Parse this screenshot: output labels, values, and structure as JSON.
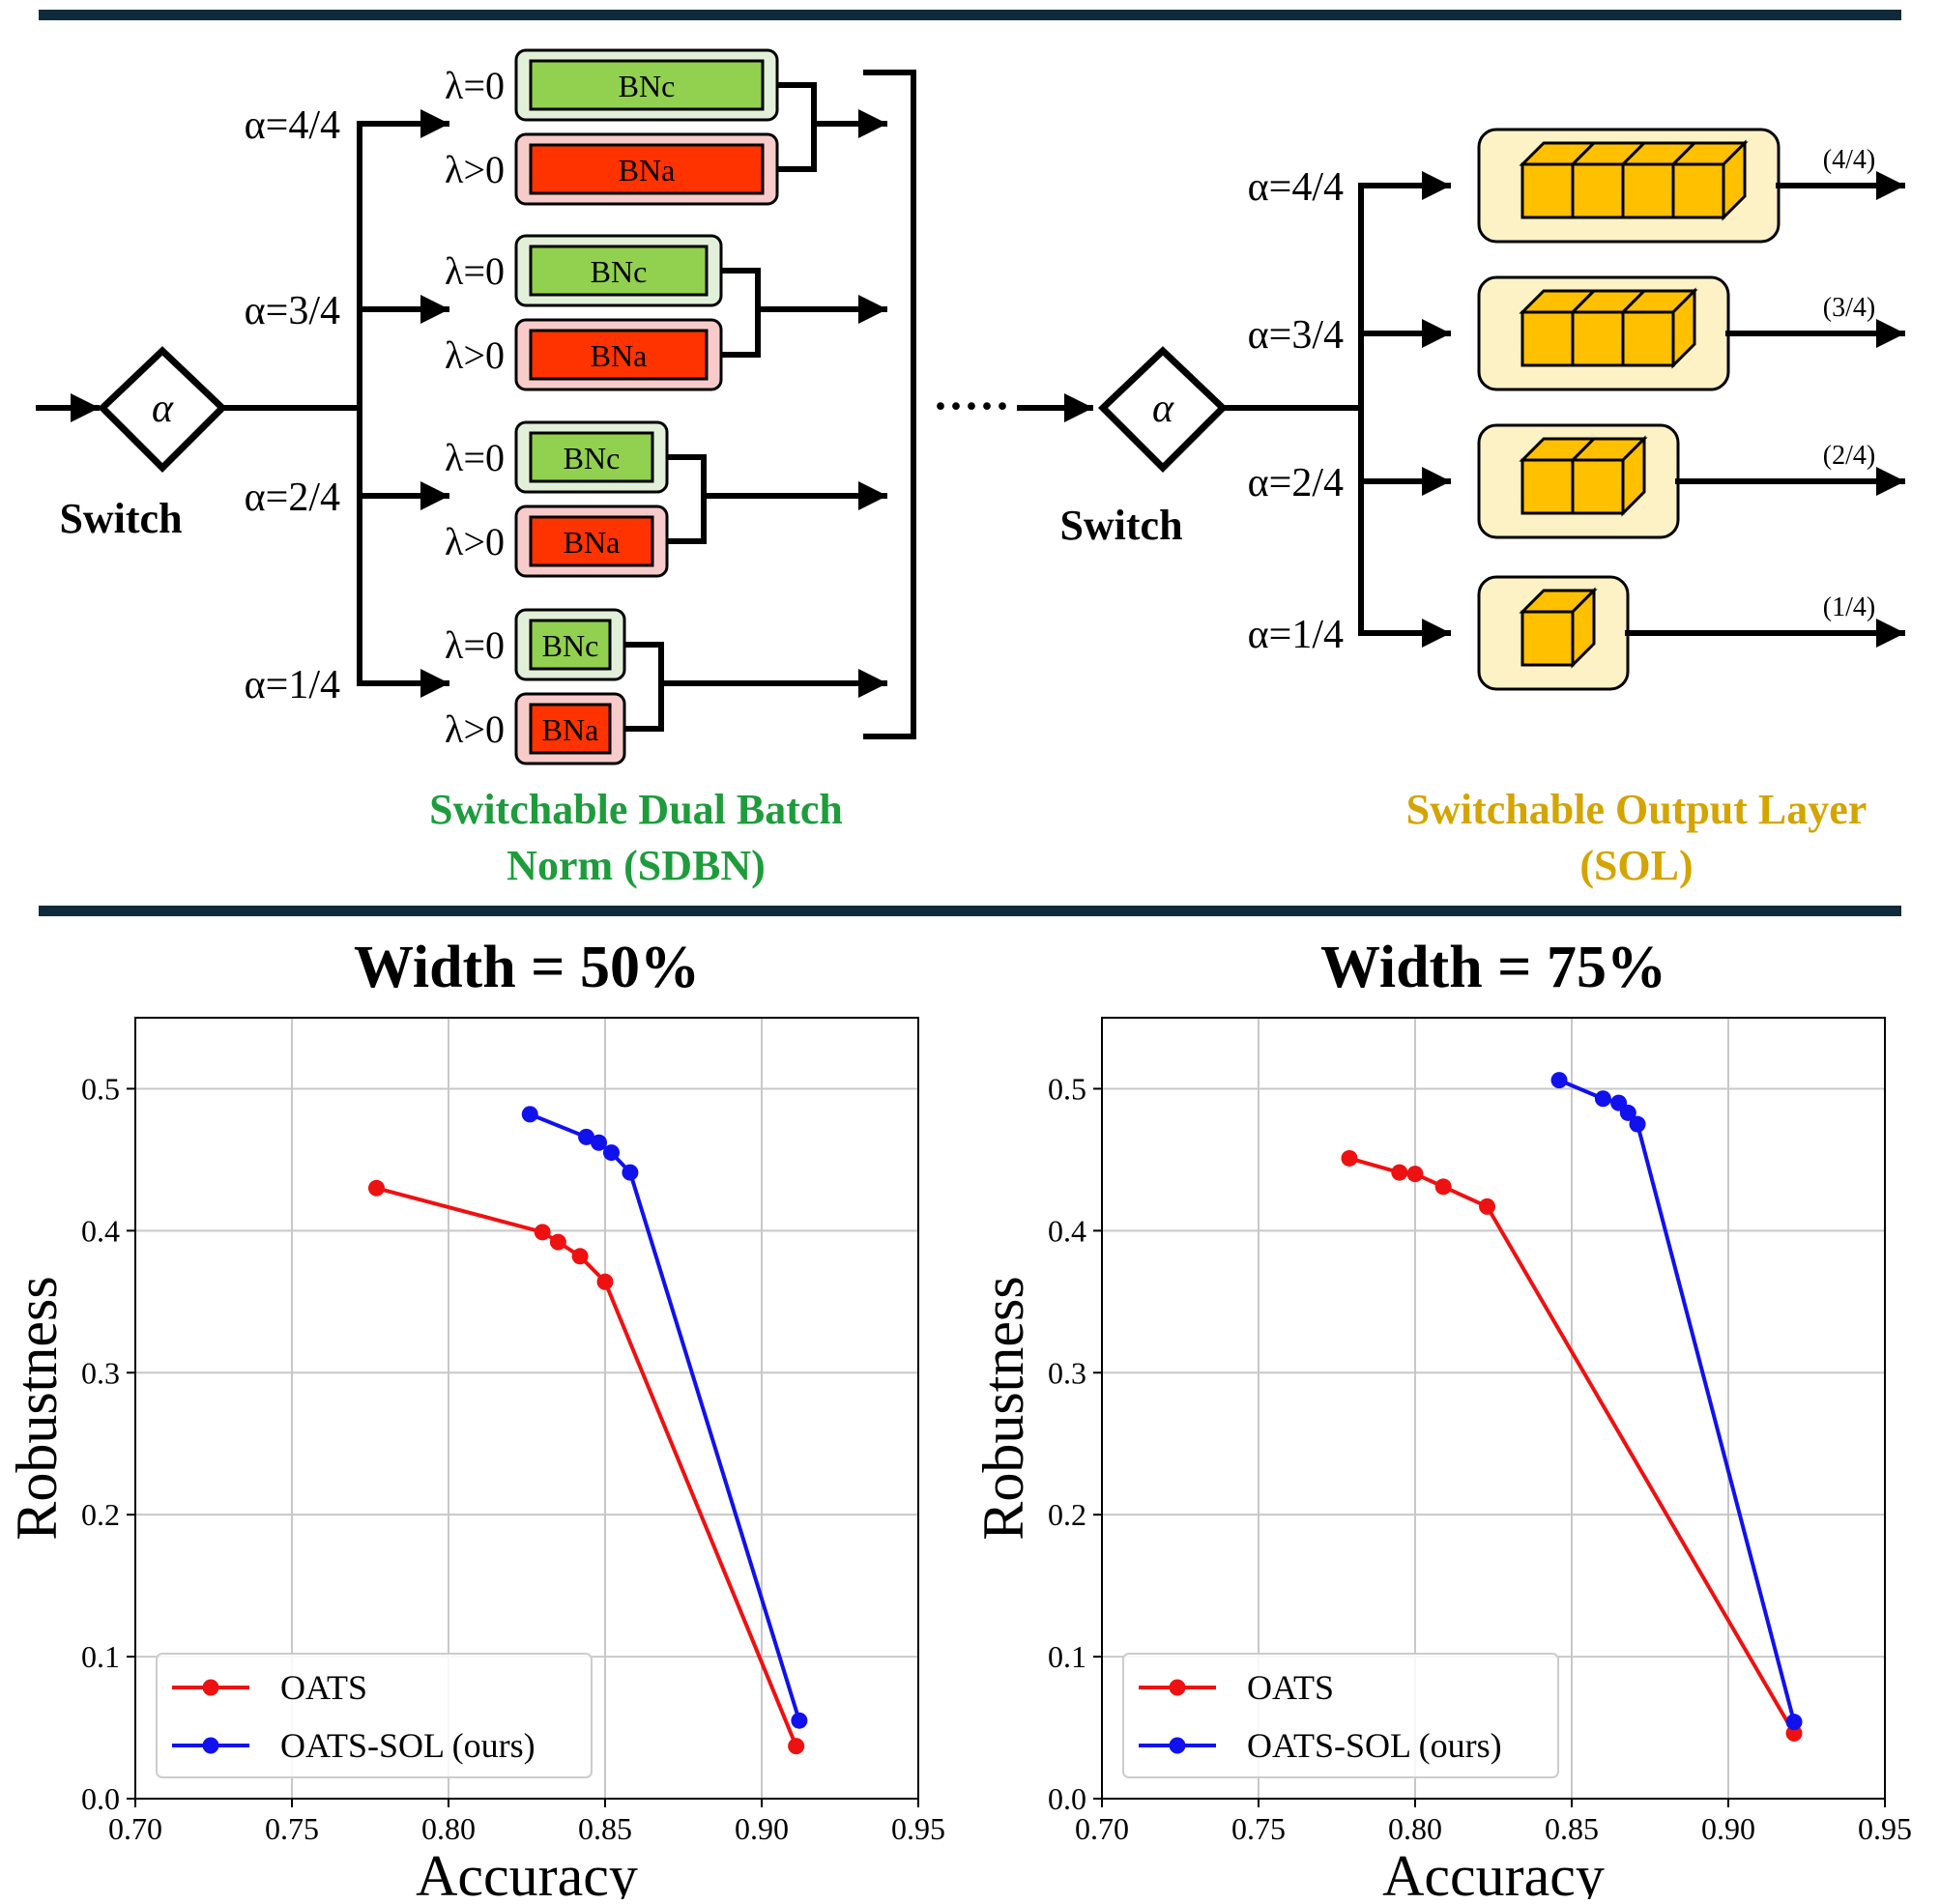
{
  "diagram": {
    "sdbn": {
      "switch_label": "Switch",
      "switch_symbol": "α",
      "branches": [
        {
          "alpha": "α=4/4",
          "lambda0": "λ=0",
          "lambda1": "λ>0",
          "bnc": "BNc",
          "bna": "BNa"
        },
        {
          "alpha": "α=3/4",
          "lambda0": "λ=0",
          "lambda1": "λ>0",
          "bnc": "BNc",
          "bna": "BNa"
        },
        {
          "alpha": "α=2/4",
          "lambda0": "λ=0",
          "lambda1": "λ>0",
          "bnc": "BNc",
          "bna": "BNa"
        },
        {
          "alpha": "α=1/4",
          "lambda0": "λ=0",
          "lambda1": "λ>0",
          "bnc": "BNc",
          "bna": "BNa"
        }
      ],
      "caption_line1": "Switchable Dual Batch",
      "caption_line2": "Norm (SDBN)"
    },
    "sol": {
      "switch_label": "Switch",
      "switch_symbol": "α",
      "branches": [
        {
          "alpha": "α=4/4",
          "output": "(4/4)",
          "cubes": 4
        },
        {
          "alpha": "α=3/4",
          "output": "(3/4)",
          "cubes": 3
        },
        {
          "alpha": "α=2/4",
          "output": "(2/4)",
          "cubes": 2
        },
        {
          "alpha": "α=1/4",
          "output": "(1/4)",
          "cubes": 1
        }
      ],
      "caption_line1": "Switchable Output Layer",
      "caption_line2": "(SOL)"
    },
    "colors": {
      "bnc_fill": "#92d050",
      "bnc_outer": "#e2f0d9",
      "bna_fill": "#ff3300",
      "bna_outer": "#f8cbcb",
      "cube_fill": "#ffc000",
      "sol_box": "#fdf1c6",
      "sdbn_caption": "#1e9c3c",
      "sol_caption": "#d4a400",
      "rule": "#0f2a3a"
    },
    "ellipsis": "·····"
  },
  "chart_data": [
    {
      "type": "line",
      "title": "Width = 50%",
      "xlabel": "Accuracy",
      "ylabel": "Robustness",
      "xlim": [
        0.7,
        0.95
      ],
      "ylim": [
        0.0,
        0.55
      ],
      "xticks": [
        0.7,
        0.75,
        0.8,
        0.85,
        0.9,
        0.95
      ],
      "yticks": [
        0.0,
        0.1,
        0.2,
        0.3,
        0.4,
        0.5
      ],
      "grid": true,
      "legend_position": "lower-left",
      "series": [
        {
          "name": "OATS",
          "color": "#ee1111",
          "x": [
            0.777,
            0.83,
            0.835,
            0.842,
            0.85,
            0.911
          ],
          "y": [
            0.43,
            0.399,
            0.392,
            0.382,
            0.364,
            0.037
          ]
        },
        {
          "name": "OATS-SOL (ours)",
          "color": "#1111ee",
          "x": [
            0.826,
            0.844,
            0.848,
            0.852,
            0.858,
            0.912
          ],
          "y": [
            0.482,
            0.466,
            0.462,
            0.455,
            0.441,
            0.055
          ]
        }
      ]
    },
    {
      "type": "line",
      "title": "Width = 75%",
      "xlabel": "Accuracy",
      "ylabel": "Robustness",
      "xlim": [
        0.7,
        0.95
      ],
      "ylim": [
        0.0,
        0.55
      ],
      "xticks": [
        0.7,
        0.75,
        0.8,
        0.85,
        0.9,
        0.95
      ],
      "yticks": [
        0.0,
        0.1,
        0.2,
        0.3,
        0.4,
        0.5
      ],
      "grid": true,
      "legend_position": "lower-left",
      "series": [
        {
          "name": "OATS",
          "color": "#ee1111",
          "x": [
            0.779,
            0.795,
            0.8,
            0.809,
            0.823,
            0.921
          ],
          "y": [
            0.451,
            0.441,
            0.44,
            0.431,
            0.417,
            0.046
          ]
        },
        {
          "name": "OATS-SOL (ours)",
          "color": "#1111ee",
          "x": [
            0.846,
            0.86,
            0.865,
            0.868,
            0.871,
            0.921
          ],
          "y": [
            0.506,
            0.493,
            0.49,
            0.483,
            0.475,
            0.054
          ]
        }
      ]
    }
  ]
}
